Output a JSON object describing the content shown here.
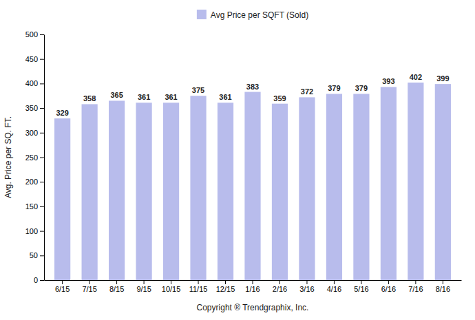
{
  "chart_data": {
    "type": "bar",
    "categories": [
      "6/15",
      "7/15",
      "8/15",
      "9/15",
      "10/15",
      "11/15",
      "12/15",
      "1/16",
      "2/16",
      "3/16",
      "4/16",
      "5/16",
      "6/16",
      "7/16",
      "8/16"
    ],
    "series": [
      {
        "name": "Avg Price per SQFT (Sold)",
        "color": "#b8bcec",
        "values": [
          329,
          358,
          365,
          361,
          361,
          375,
          361,
          383,
          359,
          372,
          379,
          379,
          393,
          402,
          399
        ]
      }
    ],
    "xlabel": "Copyright ® Trendgraphix, Inc.",
    "ylabel": "Avg. Price per SQ. FT.",
    "ylim": [
      0,
      500
    ],
    "yticks": [
      0,
      50,
      100,
      150,
      200,
      250,
      300,
      350,
      400,
      450,
      500
    ],
    "grid": false,
    "legend": "top",
    "data_labels": true
  }
}
